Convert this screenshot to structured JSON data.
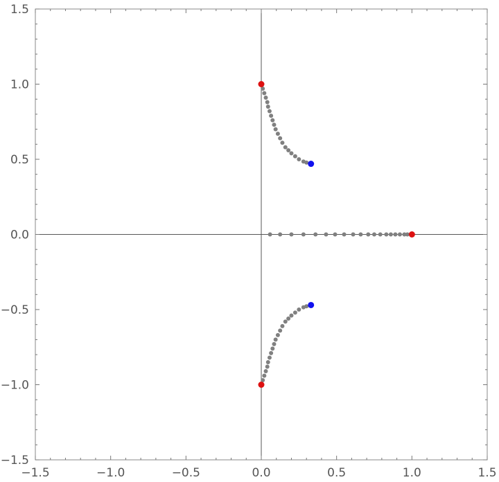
{
  "chart_data": {
    "type": "scatter",
    "title": "",
    "xlabel": "",
    "ylabel": "",
    "xlim": [
      -1.5,
      1.5
    ],
    "ylim": [
      -1.5,
      1.5
    ],
    "grid": false,
    "x_ticks": [
      {
        "value": -1.5,
        "label": "−1.5"
      },
      {
        "value": -1.0,
        "label": "−1.0"
      },
      {
        "value": -0.5,
        "label": "−0.5"
      },
      {
        "value": 0.0,
        "label": "0.0"
      },
      {
        "value": 0.5,
        "label": "0.5"
      },
      {
        "value": 1.0,
        "label": "1.0"
      },
      {
        "value": 1.5,
        "label": "1.5"
      }
    ],
    "y_ticks": [
      {
        "value": 1.5,
        "label": "1.5"
      },
      {
        "value": 1.0,
        "label": "1.0"
      },
      {
        "value": 0.5,
        "label": "0.5"
      },
      {
        "value": 0.0,
        "label": "0.0"
      },
      {
        "value": -0.5,
        "label": "−0.5"
      },
      {
        "value": -1.0,
        "label": "−1.0"
      },
      {
        "value": -1.5,
        "label": "−1.5"
      }
    ],
    "series": [
      {
        "color": "#808080",
        "points": [
          [
            0.01,
            0.97
          ],
          [
            0.02,
            0.94
          ],
          [
            0.03,
            0.91
          ],
          [
            0.04,
            0.88
          ],
          [
            0.045,
            0.85
          ],
          [
            0.055,
            0.82
          ],
          [
            0.065,
            0.79
          ],
          [
            0.075,
            0.76
          ],
          [
            0.085,
            0.73
          ],
          [
            0.095,
            0.7
          ],
          [
            0.11,
            0.67
          ],
          [
            0.125,
            0.64
          ],
          [
            0.14,
            0.61
          ],
          [
            0.16,
            0.58
          ],
          [
            0.18,
            0.56
          ],
          [
            0.2,
            0.54
          ],
          [
            0.225,
            0.52
          ],
          [
            0.25,
            0.5
          ],
          [
            0.28,
            0.485
          ],
          [
            0.3,
            0.478
          ],
          [
            0.058,
            0.0
          ],
          [
            0.125,
            0.0
          ],
          [
            0.2,
            0.0
          ],
          [
            0.28,
            0.0
          ],
          [
            0.36,
            0.0
          ],
          [
            0.43,
            0.0
          ],
          [
            0.49,
            0.0
          ],
          [
            0.55,
            0.0
          ],
          [
            0.61,
            0.0
          ],
          [
            0.66,
            0.0
          ],
          [
            0.71,
            0.0
          ],
          [
            0.75,
            0.0
          ],
          [
            0.79,
            0.0
          ],
          [
            0.83,
            0.0
          ],
          [
            0.86,
            0.0
          ],
          [
            0.89,
            0.0
          ],
          [
            0.92,
            0.0
          ],
          [
            0.95,
            0.0
          ],
          [
            0.97,
            0.0
          ],
          [
            0.01,
            -0.97
          ],
          [
            0.02,
            -0.94
          ],
          [
            0.03,
            -0.91
          ],
          [
            0.04,
            -0.88
          ],
          [
            0.045,
            -0.85
          ],
          [
            0.055,
            -0.82
          ],
          [
            0.065,
            -0.79
          ],
          [
            0.075,
            -0.76
          ],
          [
            0.085,
            -0.73
          ],
          [
            0.095,
            -0.7
          ],
          [
            0.11,
            -0.67
          ],
          [
            0.125,
            -0.64
          ],
          [
            0.14,
            -0.61
          ],
          [
            0.16,
            -0.58
          ],
          [
            0.18,
            -0.56
          ],
          [
            0.2,
            -0.54
          ],
          [
            0.225,
            -0.52
          ],
          [
            0.25,
            -0.5
          ],
          [
            0.28,
            -0.485
          ],
          [
            0.3,
            -0.478
          ]
        ]
      },
      {
        "color": "#dd1111",
        "points": [
          [
            0.0,
            1.0
          ],
          [
            1.0,
            0.0
          ],
          [
            0.0,
            -1.0
          ]
        ]
      },
      {
        "color": "#1111ee",
        "points": [
          [
            0.33,
            0.47
          ],
          [
            0.33,
            -0.47
          ]
        ]
      }
    ]
  }
}
